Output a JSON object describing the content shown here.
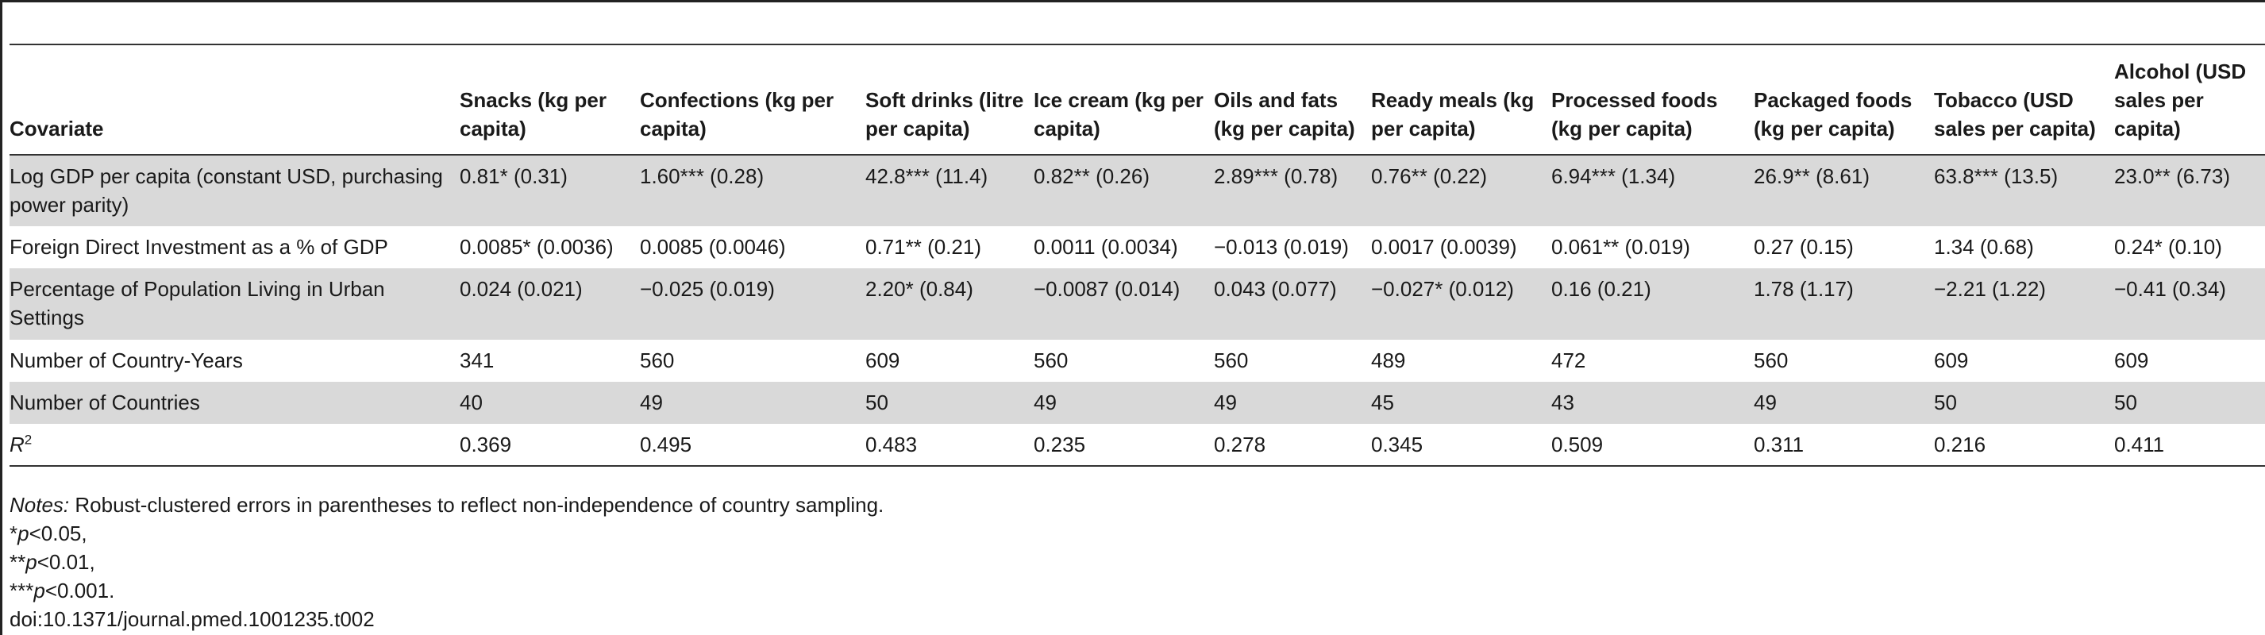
{
  "table": {
    "header": {
      "covariate": "Covariate",
      "columns": [
        "Snacks (kg per capita)",
        "Confections (kg per capita)",
        "Soft drinks (litre per capita)",
        "Ice cream (kg per capita)",
        "Oils and fats (kg per capita)",
        "Ready meals (kg per capita)",
        "Processed foods (kg per capita)",
        "Packaged foods (kg per capita)",
        "Tobacco (USD sales per capita)",
        "Alcohol (USD sales per capita)"
      ]
    },
    "rows": [
      {
        "label": "Log GDP  per capita (constant USD, purchasing power parity)",
        "values": [
          "0.81* (0.31)",
          "1.60*** (0.28)",
          "42.8*** (11.4)",
          "0.82** (0.26)",
          "2.89*** (0.78)",
          "0.76** (0.22)",
          "6.94*** (1.34)",
          "26.9** (8.61)",
          "63.8*** (13.5)",
          "23.0** (6.73)"
        ]
      },
      {
        "label": "Foreign Direct Investment as a % of GDP",
        "values": [
          "0.0085* (0.0036)",
          "0.0085 (0.0046)",
          "0.71** (0.21)",
          "0.0011 (0.0034)",
          "−0.013 (0.019)",
          "0.0017 (0.0039)",
          "0.061** (0.019)",
          "0.27 (0.15)",
          "1.34 (0.68)",
          "0.24* (0.10)"
        ]
      },
      {
        "label": "Percentage of Population Living in Urban Settings",
        "values": [
          "0.024 (0.021)",
          "−0.025 (0.019)",
          "2.20* (0.84)",
          "−0.0087 (0.014)",
          "0.043 (0.077)",
          "−0.027* (0.012)",
          "0.16 (0.21)",
          "1.78 (1.17)",
          "−2.21 (1.22)",
          "−0.41 (0.34)"
        ]
      },
      {
        "label": "Number of Country-Years",
        "values": [
          "341",
          "560",
          "609",
          "560",
          "560",
          "489",
          "472",
          "560",
          "609",
          "609"
        ]
      },
      {
        "label": "Number of Countries",
        "values": [
          "40",
          "49",
          "50",
          "49",
          "49",
          "45",
          "43",
          "49",
          "50",
          "50"
        ]
      },
      {
        "label_base": "R",
        "label_sup": "2",
        "values": [
          "0.369",
          "0.495",
          "0.483",
          "0.235",
          "0.278",
          "0.345",
          "0.509",
          "0.311",
          "0.216",
          "0.411"
        ]
      }
    ]
  },
  "notes": {
    "notes_label": "Notes:",
    "notes_text": " Robust-clustered errors in parentheses to reflect non-independence of country sampling.",
    "sig1_stars": "*",
    "sig2_stars": "**",
    "sig3_stars": "***",
    "p_symbol": "p",
    "sig1_rest": "<0.05,",
    "sig2_rest": "<0.01,",
    "sig3_rest": "<0.001.",
    "doi": "doi:10.1371/journal.pmed.1001235.t002"
  }
}
